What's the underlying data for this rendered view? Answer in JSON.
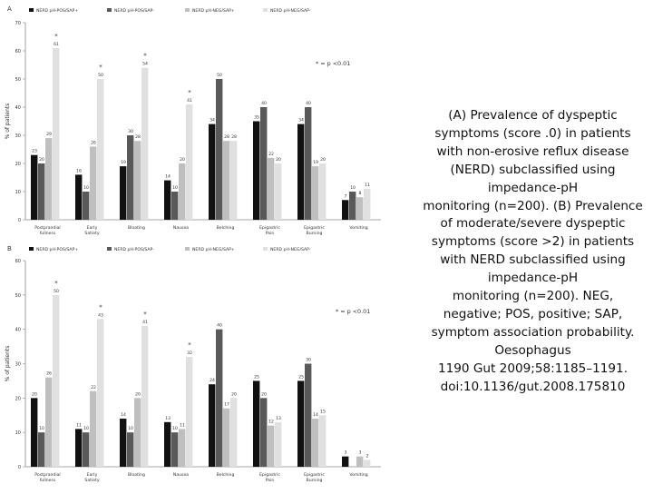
{
  "colors": {
    "series": [
      "#111111",
      "#595959",
      "#bfbfbf",
      "#e0e0e0"
    ],
    "axis": "#8a8a8a",
    "text": "#333333"
  },
  "caption": {
    "lines": [
      "(A) Prevalence of dyspeptic",
      "symptoms (score .0) in patients",
      "with non-erosive reflux disease",
      "(NERD) subclassified using",
      "impedance-pH",
      "monitoring (n=200). (B) Prevalence",
      "of moderate/severe dyspeptic",
      "symptoms (score >2) in patients",
      "with NERD subclassified using",
      "impedance-pH",
      "monitoring (n=200). NEG,",
      "negative; POS, positive; SAP,",
      "symptom association probability.",
      "Oesophagus",
      "1190 Gut 2009;58:1185–1191.",
      "doi:10.1136/gut.2008.175810"
    ]
  },
  "chart_data": [
    {
      "panel": "A",
      "type": "bar",
      "ylabel": "% of patients",
      "ylim": [
        0,
        70
      ],
      "yticks": [
        0,
        10,
        20,
        30,
        40,
        50,
        60,
        70
      ],
      "categories": [
        "Postprandial fullness",
        "Early Satiety",
        "Bloating",
        "Nausea",
        "Belching",
        "Epigastric Pain",
        "Epigastric Burning",
        "Vomiting"
      ],
      "series": [
        {
          "name": "NERD pH-POS/SAP+",
          "values": [
            23,
            16,
            19,
            14,
            34,
            35,
            34,
            7
          ]
        },
        {
          "name": "NERD pH-POS/SAP-",
          "values": [
            20,
            10,
            30,
            10,
            50,
            40,
            40,
            10
          ]
        },
        {
          "name": "NERD pH-NEG/SAP+",
          "values": [
            29,
            26,
            28,
            20,
            28,
            22,
            19,
            8
          ]
        },
        {
          "name": "NERD pH-NEG/SAP-",
          "values": [
            61,
            50,
            54,
            41,
            28,
            20,
            20,
            11
          ]
        }
      ],
      "data_labels": [
        [
          "23",
          "16",
          "19",
          "14",
          "34",
          "35",
          "34",
          "7"
        ],
        [
          "20",
          "10",
          "30",
          "10",
          "50",
          "40",
          "40",
          "10"
        ],
        [
          "29",
          "26",
          "28",
          "20",
          "28",
          "22",
          "19",
          "8"
        ],
        [
          "61",
          "50",
          "54",
          "41",
          "28",
          "20",
          "20",
          "11"
        ]
      ],
      "significance": [
        "*",
        "*",
        "*",
        "*",
        "",
        "",
        "",
        ""
      ],
      "annotation": "* = p <0.01",
      "legend_position": "top",
      "grid": false
    },
    {
      "panel": "B",
      "type": "bar",
      "ylabel": "% of patients",
      "ylim": [
        0,
        60
      ],
      "yticks": [
        0,
        10,
        20,
        30,
        40,
        50,
        60
      ],
      "categories": [
        "Postprandial fullness",
        "Early Satiety",
        "Bloating",
        "Nausea",
        "Belching",
        "Epigastric Pain",
        "Epigastric Burning",
        "Vomiting"
      ],
      "series": [
        {
          "name": "NERD pH-POS/SAP+",
          "values": [
            20,
            11,
            14,
            13,
            24,
            25,
            25,
            3
          ]
        },
        {
          "name": "NERD pH-POS/SAP-",
          "values": [
            10,
            10,
            10,
            10,
            40,
            20,
            30,
            0
          ]
        },
        {
          "name": "NERD pH-NEG/SAP+",
          "values": [
            26,
            22,
            20,
            11,
            17,
            12,
            14,
            3
          ]
        },
        {
          "name": "NERD pH-NEG/SAP-",
          "values": [
            50,
            43,
            41,
            32,
            20,
            13,
            15,
            2
          ]
        }
      ],
      "data_labels": [
        [
          "20",
          "11",
          "14",
          "13",
          "24",
          "25",
          "25",
          "3"
        ],
        [
          "10",
          "10",
          "10",
          "10",
          "40",
          "20",
          "30",
          ""
        ],
        [
          "26",
          "22",
          "20",
          "11",
          "17",
          "12",
          "14",
          "3"
        ],
        [
          "50",
          "43",
          "41",
          "32",
          "20",
          "13",
          "15",
          "2"
        ]
      ],
      "significance": [
        "*",
        "*",
        "*",
        "*",
        "",
        "",
        "",
        ""
      ],
      "annotation": "* = p <0.01",
      "legend_position": "top",
      "grid": false
    }
  ]
}
